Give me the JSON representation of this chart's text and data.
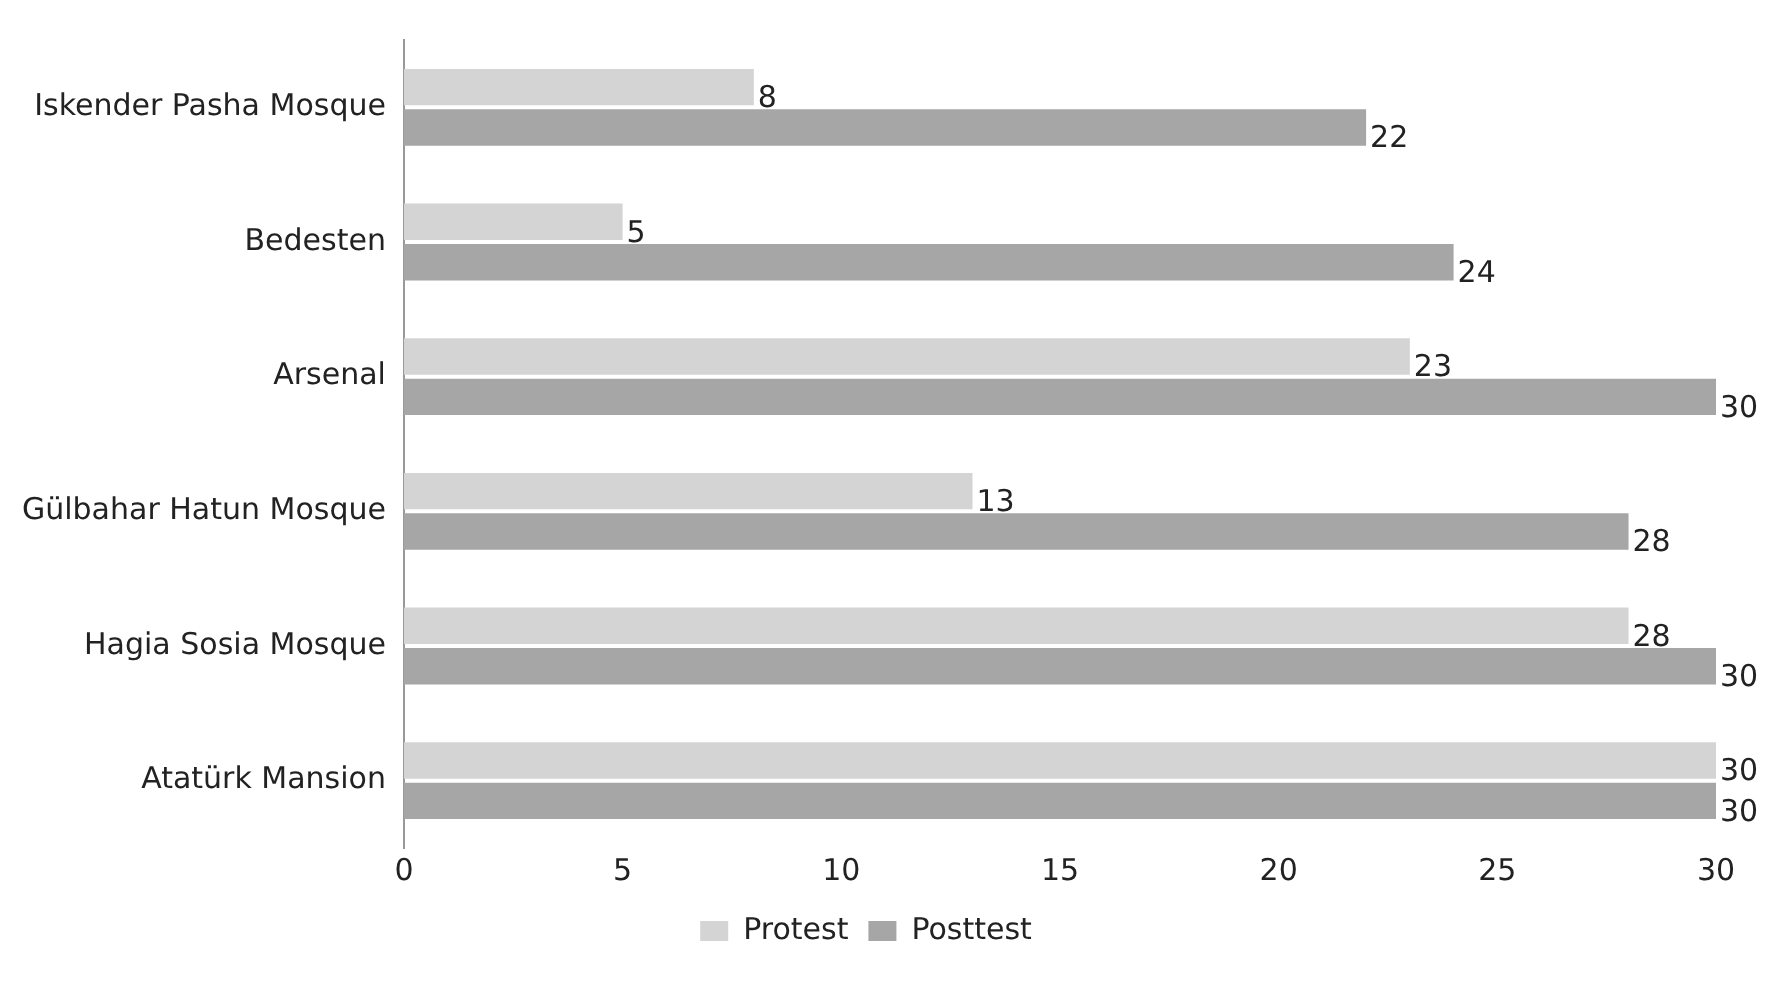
{
  "chart_data": {
    "type": "bar",
    "orientation": "horizontal",
    "categories": [
      "Iskender Pasha Mosque",
      "Bedesten",
      "Arsenal",
      "Gülbahar Hatun Mosque",
      "Hagia Sosia Mosque",
      "Atatürk Mansion"
    ],
    "series": [
      {
        "name": "Protest",
        "color": "#d4d4d4",
        "values": [
          8,
          5,
          23,
          13,
          28,
          30
        ]
      },
      {
        "name": "Posttest",
        "color": "#a6a6a6",
        "values": [
          22,
          24,
          30,
          28,
          30,
          30
        ]
      }
    ],
    "xlim": [
      0,
      30
    ],
    "xticks": [
      0,
      5,
      10,
      15,
      20,
      25,
      30
    ],
    "grid": false,
    "legend": "bottom",
    "data_labels": true
  }
}
